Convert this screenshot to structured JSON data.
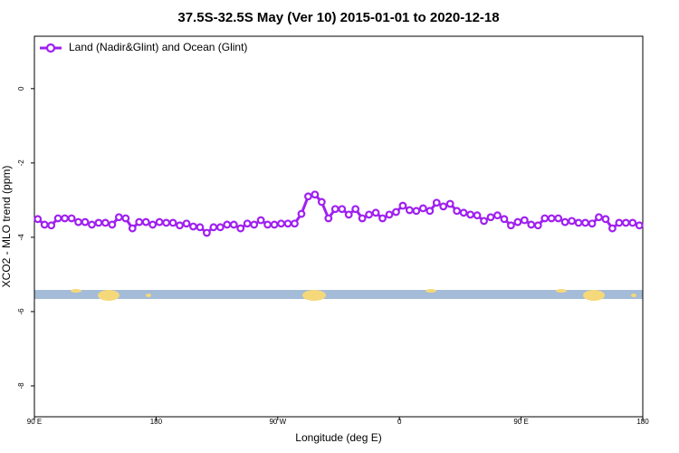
{
  "chart_data": {
    "type": "line",
    "title": "37.5S-32.5S May (Ver 10)   2015-01-01 to 2020-12-18",
    "xlabel": "Longitude (deg E)",
    "ylabel": "XCO2 - MLO trend (ppm)",
    "xlim": [
      90,
      540
    ],
    "ylim": [
      -8.83,
      1.41
    ],
    "xticks": [
      {
        "value": 90,
        "label": "90 E"
      },
      {
        "value": 180,
        "label": "180"
      },
      {
        "value": 270,
        "label": "90 W"
      },
      {
        "value": 360,
        "label": "0"
      },
      {
        "value": 450,
        "label": "90 E"
      },
      {
        "value": 540,
        "label": "180"
      }
    ],
    "yticks": [
      0,
      -2,
      -4,
      -6,
      -8
    ],
    "legend": "upper left",
    "x": [
      92.5,
      97.5,
      102.5,
      107.5,
      112.5,
      117.5,
      122.5,
      127.5,
      132.5,
      137.5,
      142.5,
      147.5,
      152.5,
      157.5,
      162.5,
      167.5,
      172.5,
      177.5,
      182.5,
      187.5,
      192.5,
      197.5,
      202.5,
      207.5,
      212.5,
      217.5,
      222.5,
      227.5,
      232.5,
      237.5,
      242.5,
      247.5,
      252.5,
      257.5,
      262.5,
      267.5,
      272.5,
      277.5,
      282.5,
      287.5,
      292.5,
      297.5,
      302.5,
      307.5,
      312.5,
      317.5,
      322.5,
      327.5,
      332.5,
      337.5,
      342.5,
      347.5,
      352.5,
      357.5,
      362.5,
      367.5,
      372.5,
      377.5,
      382.5,
      387.5,
      392.5,
      397.5,
      402.5,
      407.5,
      412.5,
      417.5,
      422.5,
      427.5,
      432.5,
      437.5,
      442.5,
      447.5,
      452.5,
      457.5,
      462.5,
      467.5,
      472.5,
      477.5,
      482.5,
      487.5,
      492.5,
      497.5,
      502.5,
      507.5,
      512.5,
      517.5,
      522.5,
      527.5,
      532.5,
      537.5
    ],
    "series": [
      {
        "name": "Land (Nadir&Glint) and Ocean (Glint)",
        "color": "#a020f0",
        "values": [
          -3.51,
          -3.66,
          -3.68,
          -3.49,
          -3.49,
          -3.49,
          -3.59,
          -3.59,
          -3.66,
          -3.61,
          -3.61,
          -3.66,
          -3.46,
          -3.49,
          -3.76,
          -3.59,
          -3.59,
          -3.66,
          -3.59,
          -3.61,
          -3.61,
          -3.68,
          -3.63,
          -3.71,
          -3.73,
          -3.88,
          -3.73,
          -3.73,
          -3.66,
          -3.66,
          -3.76,
          -3.63,
          -3.66,
          -3.54,
          -3.66,
          -3.66,
          -3.63,
          -3.63,
          -3.63,
          -3.37,
          -2.9,
          -2.85,
          -3.05,
          -3.49,
          -3.24,
          -3.24,
          -3.39,
          -3.24,
          -3.49,
          -3.39,
          -3.34,
          -3.49,
          -3.39,
          -3.32,
          -3.15,
          -3.27,
          -3.29,
          -3.22,
          -3.29,
          -3.07,
          -3.17,
          -3.1,
          -3.29,
          -3.34,
          -3.39,
          -3.41,
          -3.56,
          -3.46,
          -3.41,
          -3.51,
          -3.68,
          -3.59,
          -3.54,
          -3.66,
          -3.68,
          -3.49,
          -3.49,
          -3.49,
          -3.59,
          -3.56,
          -3.61,
          -3.61,
          -3.63,
          -3.46,
          -3.51,
          -3.76,
          -3.61,
          -3.61,
          -3.61,
          -3.68
        ]
      }
    ]
  }
}
